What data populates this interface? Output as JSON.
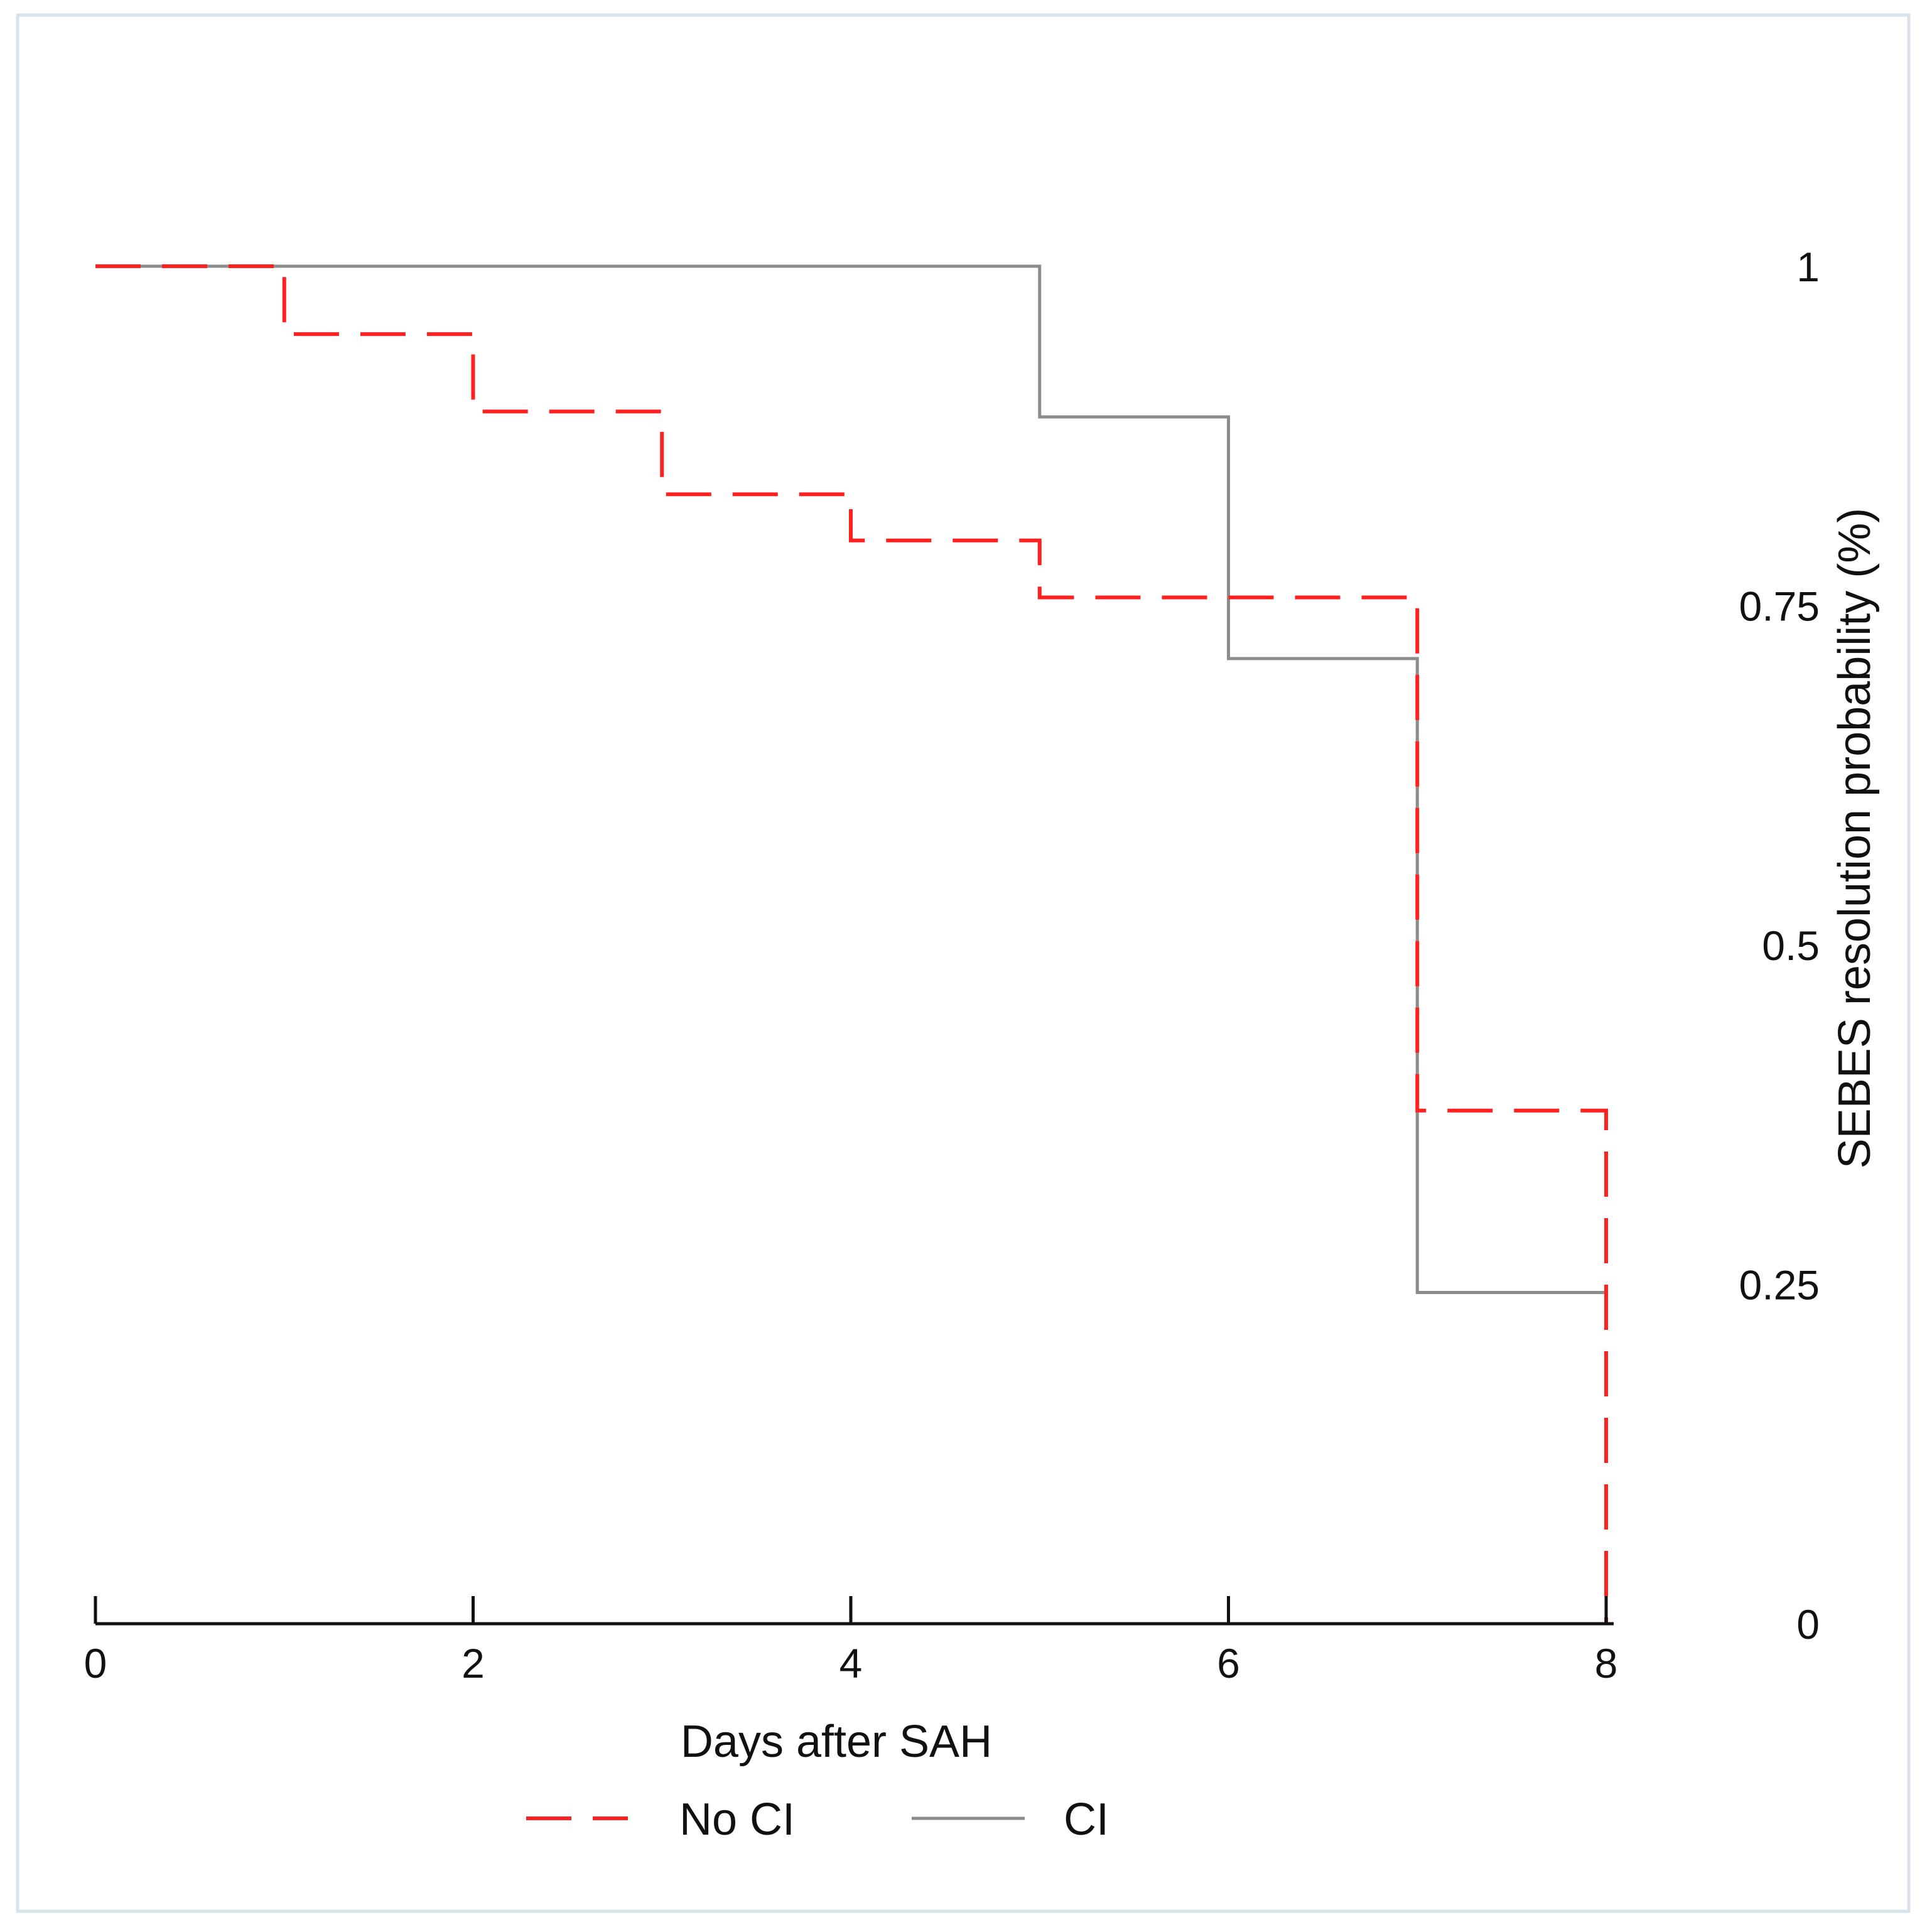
{
  "chart_data": {
    "type": "line",
    "subtype": "kaplan-meier-step",
    "title": "",
    "xlabel": "Days after SAH",
    "ylabel": "SEBES resolution probability (%)",
    "xlim": [
      0,
      8
    ],
    "ylim": [
      0,
      1
    ],
    "x_ticks": [
      "0",
      "2",
      "4",
      "6",
      "8"
    ],
    "y_ticks": [
      "0",
      "0.25",
      "0.5",
      "0.75",
      "1"
    ],
    "y_axis_side": "right",
    "grid": false,
    "legend_position": "bottom",
    "series": [
      {
        "name": "No CI",
        "style": "dashed",
        "color": "#ff2020",
        "x": [
          0,
          1,
          2,
          3,
          4,
          5,
          7,
          8
        ],
        "values": [
          1.0,
          0.95,
          0.893,
          0.832,
          0.798,
          0.756,
          0.378,
          0.0
        ]
      },
      {
        "name": "CI",
        "style": "solid",
        "color": "#8c8c8c",
        "x": [
          0,
          5,
          6,
          7,
          8
        ],
        "values": [
          1.0,
          0.889,
          0.711,
          0.244,
          0.244
        ]
      }
    ]
  }
}
